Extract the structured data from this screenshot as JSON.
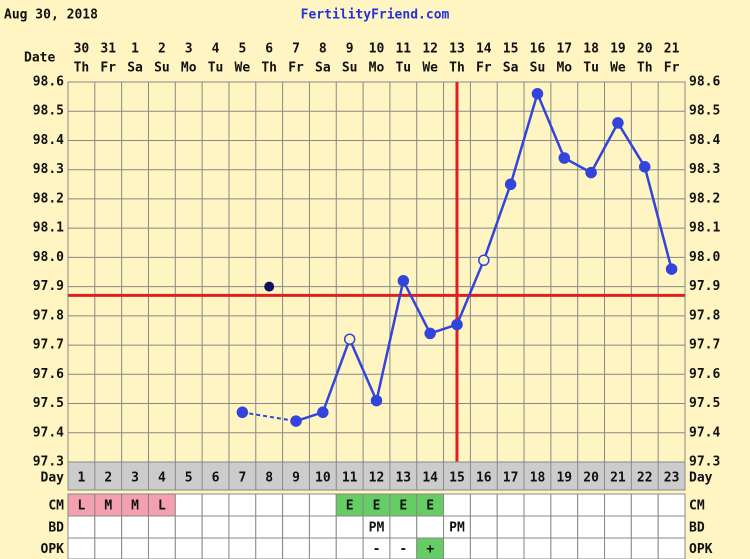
{
  "header": {
    "date": "Aug 30, 2018",
    "site": "FertilityFriend.com"
  },
  "chart_data": {
    "type": "line",
    "date_label": "Date",
    "day_label": "Day",
    "categories": [
      1,
      2,
      3,
      4,
      5,
      6,
      7,
      8,
      9,
      10,
      11,
      12,
      13,
      14,
      15,
      16,
      17,
      18,
      19,
      20,
      21,
      22,
      23
    ],
    "dates": [
      "30",
      "31",
      "1",
      "2",
      "3",
      "4",
      "5",
      "6",
      "7",
      "8",
      "9",
      "10",
      "11",
      "12",
      "13",
      "14",
      "15",
      "16",
      "17",
      "18",
      "19",
      "20",
      "21"
    ],
    "weekdays": [
      "Th",
      "Fr",
      "Sa",
      "Su",
      "Mo",
      "Tu",
      "We",
      "Th",
      "Fr",
      "Sa",
      "Su",
      "Mo",
      "Tu",
      "We",
      "Th",
      "Fr",
      "Sa",
      "Su",
      "Mo",
      "Tu",
      "We",
      "Th",
      "Fr"
    ],
    "values": [
      null,
      null,
      null,
      null,
      null,
      null,
      97.47,
      null,
      97.44,
      97.47,
      97.72,
      97.51,
      97.92,
      97.74,
      97.77,
      97.99,
      98.25,
      98.56,
      98.34,
      98.29,
      98.46,
      98.31,
      97.96
    ],
    "markers": [
      null,
      null,
      null,
      null,
      null,
      null,
      "filled",
      null,
      "filled",
      "filled",
      "open",
      "filled",
      "filled",
      "filled",
      "filled",
      "open",
      "filled",
      "filled",
      "filled",
      "filled",
      "filled",
      "filled",
      "filled"
    ],
    "color": "#3344dd",
    "discarded_values": [
      null,
      null,
      null,
      null,
      null,
      null,
      null,
      97.9,
      null,
      null,
      null,
      null,
      null,
      null,
      null,
      null,
      null,
      null,
      null,
      null,
      null,
      null,
      null
    ],
    "discarded_color": "#101060",
    "coverline": 97.87,
    "ovulation_day": 15,
    "marker_line_color": "#e02020",
    "ylim": [
      97.3,
      98.6
    ],
    "yticks": [
      97.3,
      97.4,
      97.5,
      97.6,
      97.7,
      97.8,
      97.9,
      {
        "value": 98,
        "label": "98.0"
      },
      98.1,
      98.2,
      98.3,
      98.4,
      98.5,
      98.6
    ],
    "grid": true,
    "rows": [
      {
        "label": "CM",
        "cells": [
          "L",
          "M",
          "M",
          "L",
          null,
          null,
          null,
          null,
          null,
          null,
          "E",
          "E",
          "E",
          "E",
          null,
          null,
          null,
          null,
          null,
          null,
          null,
          null,
          null
        ],
        "colors": [
          "#f4a0b0",
          "#f4a0b0",
          "#f4a0b0",
          "#f4a0b0",
          null,
          null,
          null,
          null,
          null,
          null,
          "#66cc66",
          "#66cc66",
          "#66cc66",
          "#66cc66",
          null,
          null,
          null,
          null,
          null,
          null,
          null,
          null,
          null
        ]
      },
      {
        "label": "BD",
        "cells": [
          null,
          null,
          null,
          null,
          null,
          null,
          null,
          null,
          null,
          null,
          null,
          "PM",
          null,
          null,
          "PM",
          null,
          null,
          null,
          null,
          null,
          null,
          null,
          null
        ],
        "colors": [
          null,
          null,
          null,
          null,
          null,
          null,
          null,
          null,
          null,
          null,
          null,
          null,
          null,
          null,
          null,
          null,
          null,
          null,
          null,
          null,
          null,
          null,
          null
        ]
      },
      {
        "label": "OPK",
        "cells": [
          null,
          null,
          null,
          null,
          null,
          null,
          null,
          null,
          null,
          null,
          null,
          "-",
          "-",
          "+",
          null,
          null,
          null,
          null,
          null,
          null,
          null,
          null,
          null
        ],
        "colors": [
          null,
          null,
          null,
          null,
          null,
          null,
          null,
          null,
          null,
          null,
          null,
          null,
          null,
          "#66cc66",
          null,
          null,
          null,
          null,
          null,
          null,
          null,
          null,
          null
        ]
      }
    ]
  }
}
